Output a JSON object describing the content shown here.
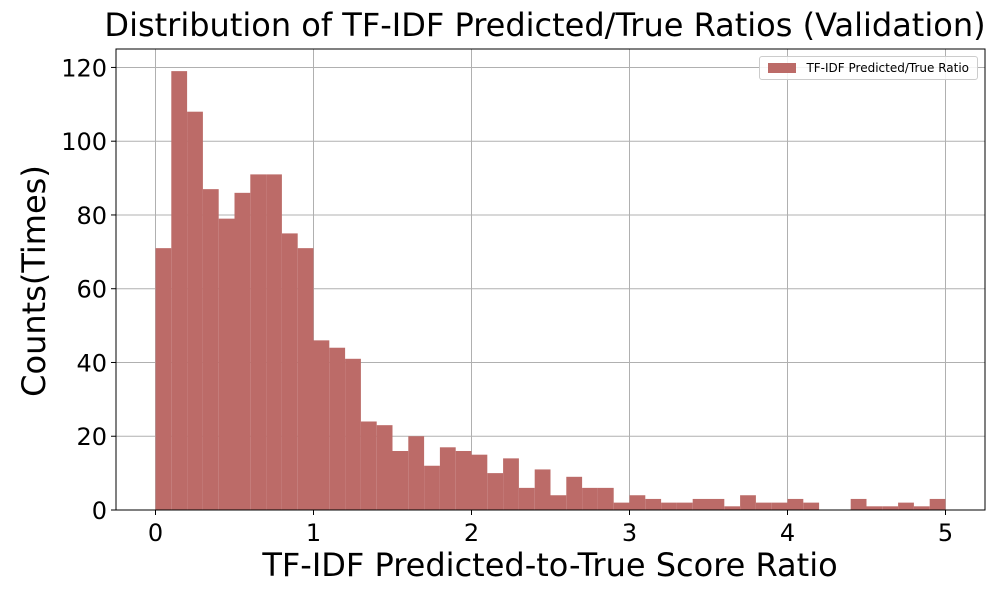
{
  "chart_data": {
    "type": "bar",
    "title": "Distribution of TF-IDF Predicted/True Ratios (Validation)",
    "xlabel": "TF-IDF Predicted-to-True Score Ratio",
    "ylabel": "Counts(Times)",
    "xlim": [
      -0.25,
      5.25
    ],
    "ylim": [
      0,
      125
    ],
    "xticks": [
      "0",
      "1",
      "2",
      "3",
      "4",
      "5"
    ],
    "yticks": [
      "0",
      "20",
      "40",
      "60",
      "80",
      "100",
      "120"
    ],
    "grid": true,
    "legend_position": "top-right",
    "series": [
      {
        "name": "TF-IDF Predicted/True Ratio",
        "color": "#bc6b68",
        "bin_width": 0.1,
        "bin_starts": [
          0.0,
          0.1,
          0.2,
          0.3,
          0.4,
          0.5,
          0.6,
          0.7,
          0.8,
          0.9,
          1.0,
          1.1,
          1.2,
          1.3,
          1.4,
          1.5,
          1.6,
          1.7,
          1.8,
          1.9,
          2.0,
          2.1,
          2.2,
          2.3,
          2.4,
          2.5,
          2.6,
          2.7,
          2.8,
          2.9,
          3.0,
          3.1,
          3.2,
          3.3,
          3.4,
          3.5,
          3.6,
          3.7,
          3.8,
          3.9,
          4.0,
          4.1,
          4.2,
          4.3,
          4.4,
          4.5,
          4.6,
          4.7,
          4.8,
          4.9
        ],
        "values": [
          71,
          119,
          108,
          87,
          79,
          86,
          91,
          91,
          75,
          71,
          46,
          44,
          41,
          24,
          23,
          16,
          20,
          12,
          17,
          16,
          15,
          10,
          14,
          6,
          11,
          4,
          9,
          6,
          6,
          2,
          4,
          3,
          2,
          2,
          3,
          3,
          1,
          4,
          2,
          2,
          3,
          2,
          0,
          0,
          3,
          1,
          1,
          2,
          1,
          3
        ]
      }
    ]
  }
}
